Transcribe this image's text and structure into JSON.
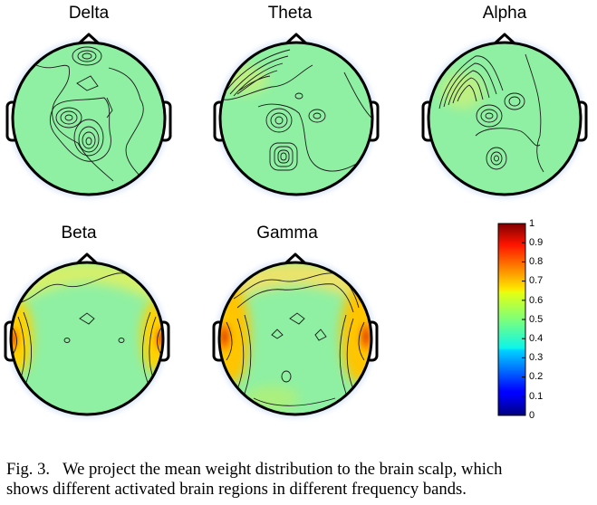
{
  "panels": [
    {
      "key": "delta",
      "title": "Delta"
    },
    {
      "key": "theta",
      "title": "Theta"
    },
    {
      "key": "alpha",
      "title": "Alpha"
    },
    {
      "key": "beta",
      "title": "Beta"
    },
    {
      "key": "gamma",
      "title": "Gamma"
    }
  ],
  "colorbar": {
    "ticks": [
      "1",
      "0.9",
      "0.8",
      "0.7",
      "0.6",
      "0.5",
      "0.4",
      "0.3",
      "0.2",
      "0.1",
      "0"
    ],
    "colormap": "jet",
    "min": 0,
    "max": 1
  },
  "caption": {
    "label": "Fig. 3.",
    "line1": "We project the mean weight distribution to the brain scalp, which",
    "line2": "shows different activated brain regions in different frequency bands."
  },
  "colors": {
    "scalp_base": "#8ff0a3",
    "contour": "#1a1a1a",
    "head_outline": "#000000",
    "halo": "#d8e6f7"
  }
}
